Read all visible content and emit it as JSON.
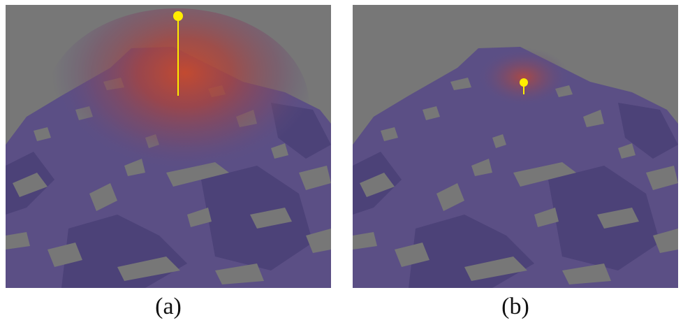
{
  "panels": [
    {
      "id": "a",
      "caption": "(a)",
      "marker": "pin-marker",
      "stem": "tall"
    },
    {
      "id": "b",
      "caption": "(b)",
      "marker": "pin-marker",
      "stem": "short"
    }
  ],
  "colors": {
    "background": "#777777",
    "terrain": "#5b4f85",
    "terrain_dark": "#4c4278",
    "highlight": "#c0492f",
    "marker": "#ffee00"
  }
}
